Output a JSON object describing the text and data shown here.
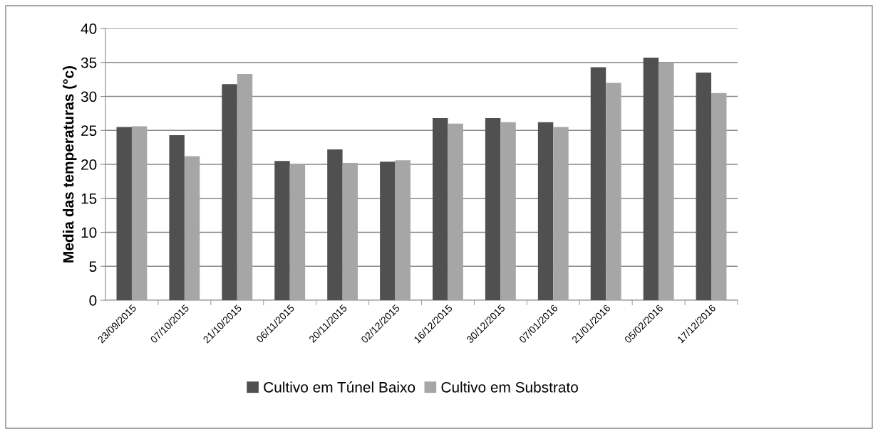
{
  "chart_data": {
    "type": "bar",
    "ylabel": "Media das temperaturas (°c)",
    "categories": [
      "23/09/2015",
      "07/10/2015",
      "21/10/2015",
      "06/11/2015",
      "20/11/2015",
      "02/12/2015",
      "16/12/2015",
      "30/12/2015",
      "07/01/2016",
      "21/01/2016",
      "05/02/2016",
      "17/12/2016"
    ],
    "series": [
      {
        "name": "Cultivo em Túnel Baixo",
        "color": "#505050",
        "values": [
          25.5,
          24.3,
          31.8,
          20.5,
          22.2,
          20.4,
          26.8,
          26.8,
          26.2,
          34.3,
          35.7,
          33.5
        ]
      },
      {
        "name": "Cultivo em Substrato",
        "color": "#a6a6a6",
        "values": [
          25.6,
          21.2,
          33.3,
          20.0,
          20.2,
          20.6,
          26.0,
          26.2,
          25.5,
          32.0,
          35.0,
          30.5
        ]
      }
    ],
    "ylim": [
      0,
      40
    ],
    "yticks": [
      0,
      5,
      10,
      15,
      20,
      25,
      30,
      35,
      40
    ],
    "grid": "y",
    "legend": "bottom"
  }
}
